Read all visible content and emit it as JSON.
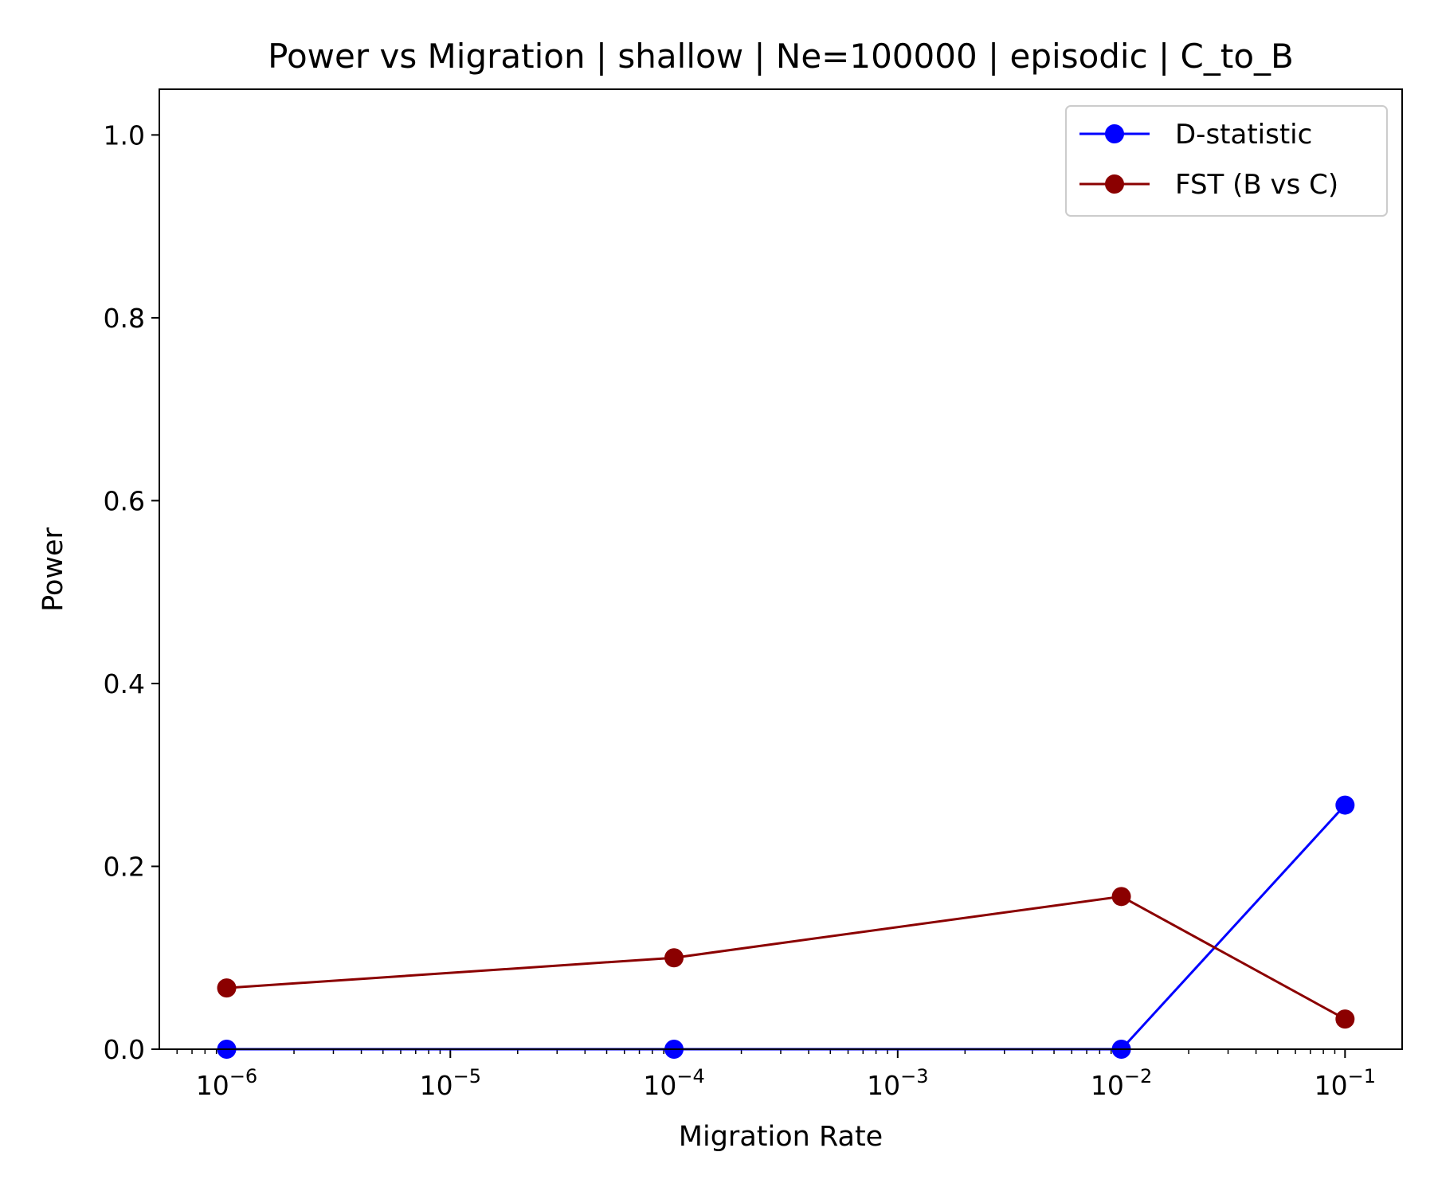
{
  "chart_data": {
    "type": "line",
    "title": "Power vs Migration | shallow | Ne=100000 | episodic | C_to_B",
    "xlabel": "Migration Rate",
    "ylabel": "Power",
    "x_scale": "log",
    "x": [
      1e-06,
      0.0001,
      0.01,
      0.1
    ],
    "xlim": [
      5e-07,
      0.18
    ],
    "ylim": [
      0,
      1.05
    ],
    "x_ticks": [
      {
        "value": 1e-06,
        "base": "10",
        "exp": "−6"
      },
      {
        "value": 1e-05,
        "base": "10",
        "exp": "−5"
      },
      {
        "value": 0.0001,
        "base": "10",
        "exp": "−4"
      },
      {
        "value": 0.001,
        "base": "10",
        "exp": "−3"
      },
      {
        "value": 0.01,
        "base": "10",
        "exp": "−2"
      },
      {
        "value": 0.1,
        "base": "10",
        "exp": "−1"
      }
    ],
    "y_ticks": [
      {
        "value": 0.0,
        "label": "0.0"
      },
      {
        "value": 0.2,
        "label": "0.2"
      },
      {
        "value": 0.4,
        "label": "0.4"
      },
      {
        "value": 0.6,
        "label": "0.6"
      },
      {
        "value": 0.8,
        "label": "0.8"
      },
      {
        "value": 1.0,
        "label": "1.0"
      }
    ],
    "series": [
      {
        "name": "D-statistic",
        "color": "#0000ff",
        "values": [
          0.0,
          0.0,
          0.0,
          0.267
        ]
      },
      {
        "name": "FST (B vs C)",
        "color": "#8b0000",
        "values": [
          0.067,
          0.1,
          0.167,
          0.033
        ]
      }
    ],
    "legend": {
      "position": "upper right"
    },
    "grid": false
  }
}
